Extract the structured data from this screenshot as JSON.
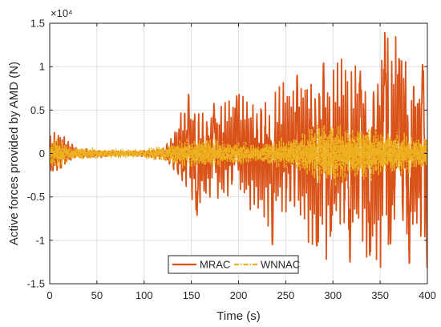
{
  "chart_data": {
    "type": "line",
    "xlabel": "Time (s)",
    "ylabel": "Active forces provided by AMD (N)",
    "xlim": [
      0,
      400
    ],
    "ylim": [
      -1.5,
      1.5
    ],
    "y_exponent_label": "×10⁴",
    "xticks": [
      "0",
      "50",
      "100",
      "150",
      "200",
      "250",
      "300",
      "350",
      "400"
    ],
    "yticks": [
      "-1.5",
      "-1",
      "-0.5",
      "0",
      "0.5",
      "1",
      "1.5"
    ],
    "grid": true,
    "legend": {
      "position": "bottom-center",
      "orientation": "horizontal"
    },
    "series": [
      {
        "name": "MRAC",
        "color": "#d95319",
        "line_style": "solid",
        "envelope": [
          [
            0,
            0.22
          ],
          [
            10,
            0.25
          ],
          [
            20,
            0.15
          ],
          [
            30,
            0.06
          ],
          [
            50,
            0.05
          ],
          [
            80,
            0.03
          ],
          [
            100,
            0.04
          ],
          [
            120,
            0.08
          ],
          [
            130,
            0.2
          ],
          [
            140,
            0.5
          ],
          [
            150,
            0.65
          ],
          [
            165,
            0.55
          ],
          [
            180,
            0.55
          ],
          [
            200,
            0.6
          ],
          [
            220,
            0.65
          ],
          [
            240,
            0.75
          ],
          [
            260,
            0.8
          ],
          [
            280,
            1.05
          ],
          [
            300,
            1.05
          ],
          [
            320,
            1.0
          ],
          [
            340,
            1.1
          ],
          [
            355,
            1.4
          ],
          [
            370,
            1.2
          ],
          [
            385,
            1.05
          ],
          [
            395,
            1.1
          ],
          [
            400,
            1.1
          ]
        ],
        "peaks": [
          [
            147,
            0.68
          ],
          [
            156,
            -0.72
          ],
          [
            174,
            0.58
          ],
          [
            198,
            0.67
          ],
          [
            236,
            -1.06
          ],
          [
            262,
            0.9
          ],
          [
            283,
            -1.1
          ],
          [
            290,
            1.05
          ],
          [
            298,
            -0.92
          ],
          [
            318,
            -1.28
          ],
          [
            329,
            0.95
          ],
          [
            339,
            -1.22
          ],
          [
            355,
            1.42
          ],
          [
            361,
            -1.05
          ],
          [
            370,
            1.1
          ],
          [
            381,
            -1.32
          ],
          [
            395,
            1.06
          ],
          [
            400,
            -1.42
          ]
        ]
      },
      {
        "name": "WNNAC",
        "color": "#edb120",
        "line_style": "dash-dot",
        "envelope": [
          [
            0,
            0.15
          ],
          [
            10,
            0.17
          ],
          [
            20,
            0.1
          ],
          [
            30,
            0.07
          ],
          [
            60,
            0.05
          ],
          [
            100,
            0.05
          ],
          [
            130,
            0.12
          ],
          [
            150,
            0.18
          ],
          [
            180,
            0.15
          ],
          [
            220,
            0.1
          ],
          [
            240,
            0.15
          ],
          [
            270,
            0.22
          ],
          [
            285,
            0.4
          ],
          [
            300,
            0.35
          ],
          [
            320,
            0.3
          ],
          [
            340,
            0.3
          ],
          [
            360,
            0.25
          ],
          [
            380,
            0.22
          ],
          [
            400,
            0.18
          ]
        ]
      }
    ]
  }
}
